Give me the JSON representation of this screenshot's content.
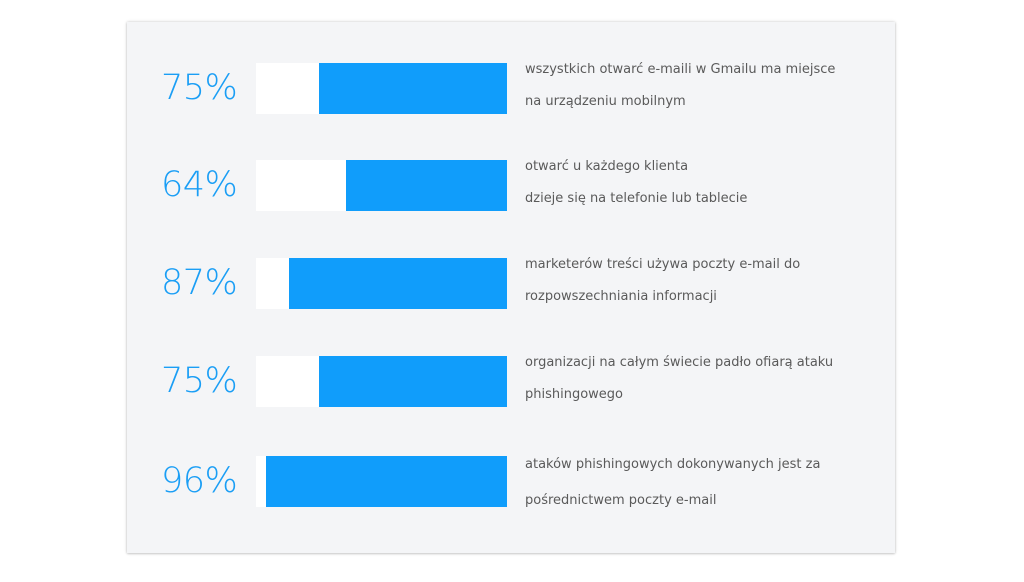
{
  "colors": {
    "accent": "#109dfb",
    "percent_text": "#1a9ef5",
    "track": "#ffffff",
    "card_bg": "#f4f5f7",
    "body_text": "#5a5a5a"
  },
  "stats": [
    {
      "percent": "75%",
      "value": 75,
      "line1": "wszystkich otwarć e-maili w Gmailu ma miejsce",
      "line2": "na urządzeniu mobilnym"
    },
    {
      "percent": "64%",
      "value": 64,
      "line1": "otwarć u każdego klienta",
      "line2": "dzieje się na telefonie lub tablecie"
    },
    {
      "percent": "87%",
      "value": 87,
      "line1": "marketerów treści używa poczty e-mail do",
      "line2": "rozpowszechniania informacji"
    },
    {
      "percent": "75%",
      "value": 75,
      "line1": "organizacji na całym świecie padło ofiarą ataku",
      "line2": "phishingowego"
    },
    {
      "percent": "96%",
      "value": 96,
      "line1": "ataków phishingowych dokonywanych jest za",
      "line2": "pośrednictwem poczty e-mail"
    }
  ],
  "chart_data": {
    "type": "bar",
    "orientation": "horizontal",
    "categories": [
      "wszystkich otwarć e-maili w Gmailu ma miejsce na urządzeniu mobilnym",
      "otwarć u każdego klienta dzieje się na telefonie lub tablecie",
      "marketerów treści używa poczty e-mail do rozpowszechniania informacji",
      "organizacji na całym świecie padło ofiarą ataku phishingowego",
      "ataków phishingowych dokonywanych jest za pośrednictwem poczty e-mail"
    ],
    "values": [
      75,
      64,
      87,
      75,
      96
    ],
    "value_labels": [
      "75%",
      "64%",
      "87%",
      "75%",
      "96%"
    ],
    "title": "",
    "xlabel": "",
    "ylabel": "",
    "xlim": [
      0,
      100
    ],
    "grid": false,
    "legend": null,
    "bar_color": "#109dfb",
    "fill_direction": "right-aligned"
  }
}
